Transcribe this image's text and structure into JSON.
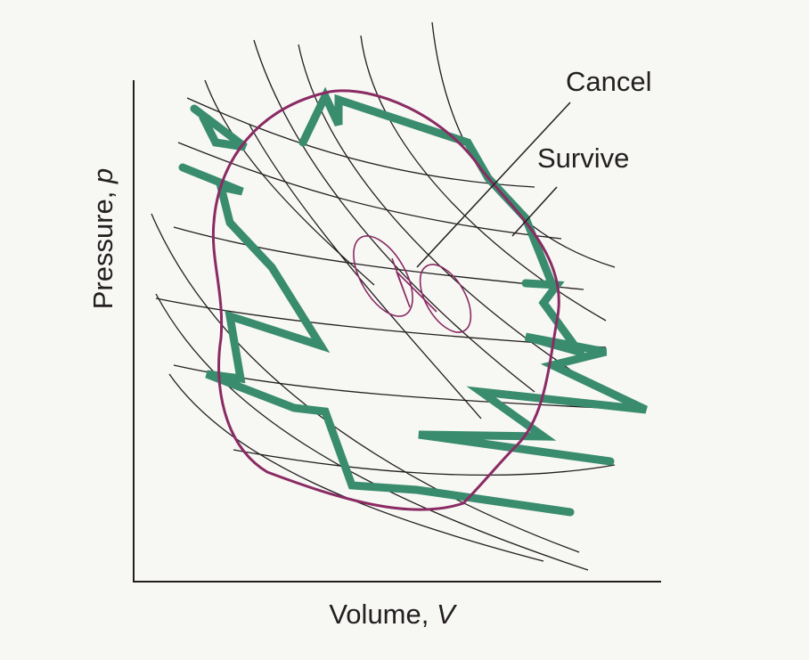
{
  "labels": {
    "cancel": "Cancel",
    "survive": "Survive"
  },
  "axes": {
    "y_label": {
      "text": "Pressure, ",
      "symbol": "p"
    },
    "x_label": {
      "text": "Volume, ",
      "symbol": "V"
    }
  }
}
